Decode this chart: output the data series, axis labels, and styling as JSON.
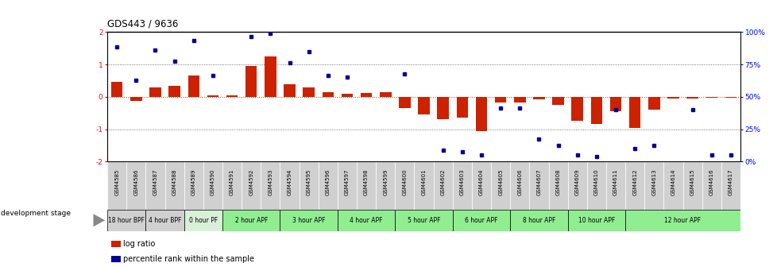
{
  "title": "GDS443 / 9636",
  "samples": [
    "GSM4585",
    "GSM4586",
    "GSM4587",
    "GSM4588",
    "GSM4589",
    "GSM4590",
    "GSM4591",
    "GSM4592",
    "GSM4593",
    "GSM4594",
    "GSM4595",
    "GSM4596",
    "GSM4597",
    "GSM4598",
    "GSM4599",
    "GSM4600",
    "GSM4601",
    "GSM4602",
    "GSM4603",
    "GSM4604",
    "GSM4605",
    "GSM4606",
    "GSM4607",
    "GSM4608",
    "GSM4609",
    "GSM4610",
    "GSM4611",
    "GSM4612",
    "GSM4613",
    "GSM4614",
    "GSM4615",
    "GSM4616",
    "GSM4617"
  ],
  "log_ratio": [
    0.45,
    -0.12,
    0.28,
    0.35,
    0.65,
    0.05,
    0.04,
    0.95,
    1.25,
    0.38,
    0.3,
    0.15,
    0.1,
    0.12,
    0.14,
    -0.35,
    -0.55,
    -0.7,
    -0.65,
    -1.05,
    -0.18,
    -0.18,
    -0.07,
    -0.25,
    -0.75,
    -0.85,
    -0.45,
    -0.95,
    -0.4,
    -0.05,
    -0.06,
    -0.02,
    -0.03
  ],
  "percentile_y": [
    1.55,
    0.5,
    1.45,
    1.1,
    1.75,
    0.65,
    null,
    1.85,
    1.95,
    1.05,
    1.4,
    0.65,
    0.6,
    null,
    null,
    0.7,
    null,
    -1.65,
    -1.7,
    -1.8,
    -0.35,
    -0.35,
    -1.3,
    -1.5,
    -1.8,
    -1.85,
    -0.4,
    -1.6,
    -1.5,
    null,
    -0.4,
    -1.8,
    -1.8
  ],
  "stages": [
    {
      "label": "18 hour BPF",
      "start": 0,
      "end": 2,
      "color": "#d0d0d0"
    },
    {
      "label": "4 hour BPF",
      "start": 2,
      "end": 4,
      "color": "#d0d0d0"
    },
    {
      "label": "0 hour PF",
      "start": 4,
      "end": 6,
      "color": "#d8f0d8"
    },
    {
      "label": "2 hour APF",
      "start": 6,
      "end": 9,
      "color": "#90ee90"
    },
    {
      "label": "3 hour APF",
      "start": 9,
      "end": 12,
      "color": "#90ee90"
    },
    {
      "label": "4 hour APF",
      "start": 12,
      "end": 15,
      "color": "#90ee90"
    },
    {
      "label": "5 hour APF",
      "start": 15,
      "end": 18,
      "color": "#90ee90"
    },
    {
      "label": "6 hour APF",
      "start": 18,
      "end": 21,
      "color": "#90ee90"
    },
    {
      "label": "8 hour APF",
      "start": 21,
      "end": 24,
      "color": "#90ee90"
    },
    {
      "label": "10 hour APF",
      "start": 24,
      "end": 27,
      "color": "#90ee90"
    },
    {
      "label": "12 hour APF",
      "start": 27,
      "end": 33,
      "color": "#90ee90"
    }
  ],
  "sample_bg_colors": [
    "#d0d0d0",
    "#d0d0d0",
    "#d0d0d0",
    "#d0d0d0",
    "#d0d0d0",
    "#d0d0d0",
    "#d0d0d0",
    "#d0d0d0",
    "#d0d0d0",
    "#d0d0d0",
    "#d0d0d0",
    "#d0d0d0",
    "#d0d0d0",
    "#d0d0d0",
    "#d0d0d0",
    "#d0d0d0",
    "#d0d0d0",
    "#d0d0d0",
    "#d0d0d0",
    "#d0d0d0",
    "#d0d0d0",
    "#d0d0d0",
    "#d0d0d0",
    "#d0d0d0",
    "#d0d0d0",
    "#d0d0d0",
    "#d0d0d0",
    "#d0d0d0",
    "#d0d0d0",
    "#d0d0d0",
    "#d0d0d0",
    "#d0d0d0",
    "#d0d0d0"
  ],
  "bar_color": "#cc2200",
  "dot_color": "#000099",
  "ylim": [
    -2,
    2
  ],
  "y2lim": [
    0,
    100
  ],
  "y_ticks": [
    -2,
    -1,
    0,
    1,
    2
  ],
  "y2_ticks": [
    0,
    25,
    50,
    75,
    100
  ],
  "hline_color": "#cc3300",
  "dotted_color": "#555555",
  "bg_color": "#ffffff",
  "legend_log_color": "#cc2200",
  "legend_pct_color": "#000099"
}
